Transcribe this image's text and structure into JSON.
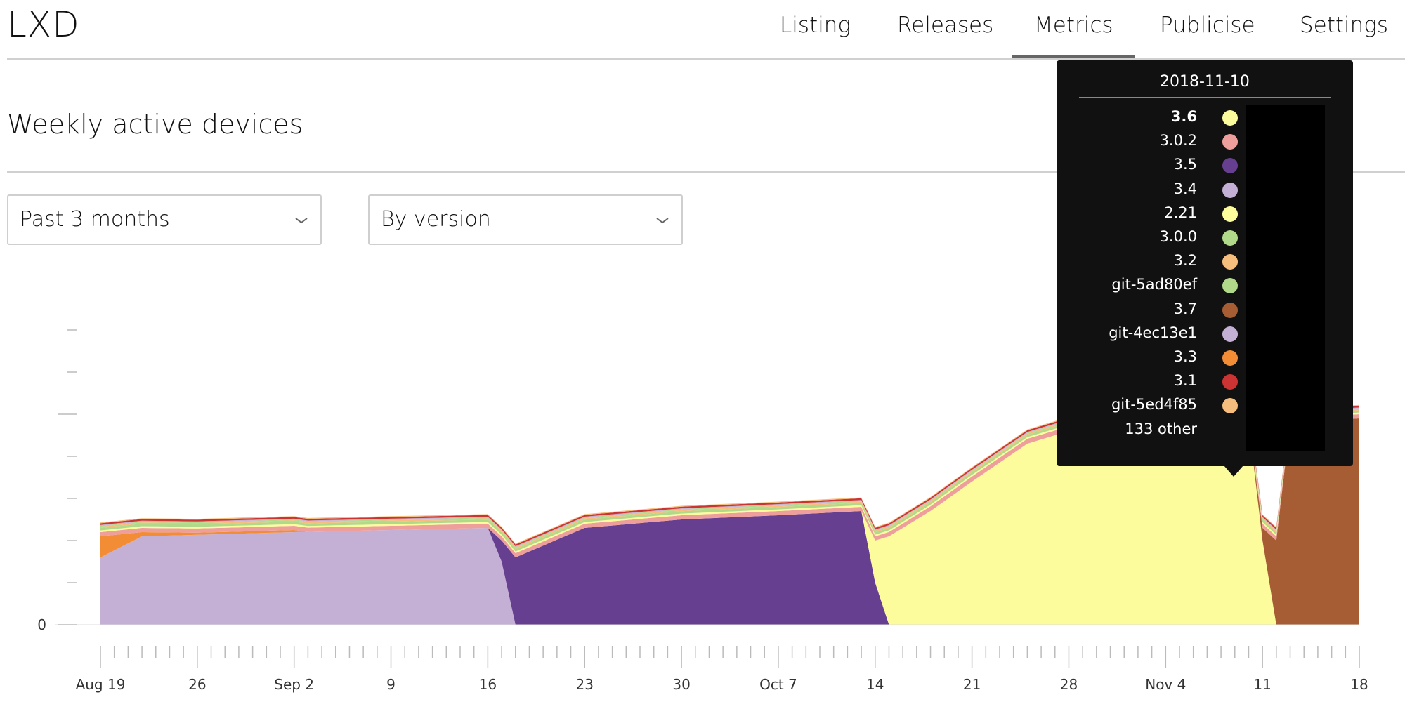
{
  "app": {
    "title": "LXD"
  },
  "nav": {
    "items": [
      {
        "label": "Listing"
      },
      {
        "label": "Releases"
      },
      {
        "label": "Metrics",
        "active": true
      },
      {
        "label": "Publicise"
      },
      {
        "label": "Settings"
      }
    ]
  },
  "section": {
    "title": "Weekly active devices"
  },
  "filters": {
    "period": {
      "selected": "Past 3 months"
    },
    "grouping": {
      "selected": "By version"
    }
  },
  "icons": {
    "select_chevron": "chevron-down-icon"
  },
  "chart_data": {
    "type": "area",
    "stacked": true,
    "y_tick_labels": [
      "0"
    ],
    "x_tick_labels": [
      "Aug 19",
      "26",
      "Sep 2",
      "9",
      "16",
      "23",
      "30",
      "Oct 7",
      "14",
      "21",
      "28",
      "Nov 4",
      "11",
      "18"
    ],
    "x_range": [
      "2018-08-19",
      "2018-11-18"
    ],
    "y_range": [
      0,
      7
    ],
    "grid": false,
    "legend": "tooltip",
    "series": [
      {
        "name": "3.4",
        "color": "#c5b0d5",
        "x": [
          "2018-08-19",
          "2018-08-22",
          "2018-09-02",
          "2018-09-16",
          "2018-09-17",
          "2018-09-18"
        ],
        "y": [
          1.6,
          2.1,
          2.2,
          2.3,
          1.5,
          0
        ]
      },
      {
        "name": "3.5",
        "color": "#663f91",
        "x": [
          "2018-09-16",
          "2018-09-17",
          "2018-09-18",
          "2018-09-23",
          "2018-09-30",
          "2018-10-07",
          "2018-10-13",
          "2018-10-14",
          "2018-10-15"
        ],
        "y": [
          0,
          0.5,
          1.6,
          2.3,
          2.5,
          2.6,
          2.7,
          1.0,
          0
        ]
      },
      {
        "name": "3.6",
        "color": "#fdfc9c",
        "x": [
          "2018-10-13",
          "2018-10-14",
          "2018-10-15",
          "2018-10-18",
          "2018-10-21",
          "2018-10-25",
          "2018-10-28",
          "2018-11-04",
          "2018-11-10",
          "2018-11-11",
          "2018-11-12"
        ],
        "y": [
          0,
          1.0,
          2.1,
          2.7,
          3.4,
          4.3,
          4.6,
          4.7,
          4.8,
          2.0,
          0
        ]
      },
      {
        "name": "3.7",
        "color": "#a65d33",
        "x": [
          "2018-11-10",
          "2018-11-11",
          "2018-11-12",
          "2018-11-13",
          "2018-11-18"
        ],
        "y": [
          0,
          0.3,
          2.0,
          4.8,
          4.9
        ]
      },
      {
        "name": "3.3",
        "color": "#f28d36",
        "x": [
          "2018-08-19",
          "2018-08-22",
          "2018-08-26",
          "2018-09-02"
        ],
        "y": [
          0.5,
          0.1,
          0.05,
          0.05
        ]
      },
      {
        "name": "3.0.2",
        "color": "#ef9f9b",
        "x": [
          "2018-08-19",
          "2018-09-16",
          "2018-10-14",
          "2018-10-21",
          "2018-11-10",
          "2018-11-18"
        ],
        "y": [
          0.1,
          0.1,
          0.1,
          0.12,
          0.1,
          0.1
        ]
      },
      {
        "name": "2.21",
        "color": "#fdfc9c",
        "x": [
          "2018-08-19",
          "2018-11-18"
        ],
        "y": [
          0.04,
          0.04
        ]
      },
      {
        "name": "3.0.0",
        "color": "#b1d98a",
        "x": [
          "2018-08-19",
          "2018-11-18"
        ],
        "y": [
          0.06,
          0.05
        ]
      },
      {
        "name": "3.2",
        "color": "#f5be7d",
        "x": [
          "2018-08-19",
          "2018-11-18"
        ],
        "y": [
          0.03,
          0.03
        ]
      },
      {
        "name": "git-5ad80ef",
        "color": "#b1d98a",
        "x": [
          "2018-08-19",
          "2018-11-18"
        ],
        "y": [
          0.02,
          0.02
        ]
      },
      {
        "name": "git-4ec13e1",
        "color": "#c5b0d5",
        "x": [
          "2018-08-19",
          "2018-11-18"
        ],
        "y": [
          0.02,
          0.02
        ]
      },
      {
        "name": "3.1",
        "color": "#cc3333",
        "x": [
          "2018-08-19",
          "2018-11-18"
        ],
        "y": [
          0.04,
          0.04
        ]
      },
      {
        "name": "git-5ed4f85",
        "color": "#f5be7d",
        "x": [
          "2018-08-19",
          "2018-11-18"
        ],
        "y": [
          0.02,
          0.02
        ]
      }
    ]
  },
  "tooltip": {
    "date": "2018-11-10",
    "rows": [
      {
        "label": "3.6",
        "color": "#fdfc9c",
        "bold": true
      },
      {
        "label": "3.0.2",
        "color": "#ef9f9b"
      },
      {
        "label": "3.5",
        "color": "#663f91"
      },
      {
        "label": "3.4",
        "color": "#c5b0d5"
      },
      {
        "label": "2.21",
        "color": "#fdfc9c"
      },
      {
        "label": "3.0.0",
        "color": "#b1d98a"
      },
      {
        "label": "3.2",
        "color": "#f5be7d"
      },
      {
        "label": "git-5ad80ef",
        "color": "#b1d98a"
      },
      {
        "label": "3.7",
        "color": "#a65d33"
      },
      {
        "label": "git-4ec13e1",
        "color": "#c5b0d5"
      },
      {
        "label": "3.3",
        "color": "#f28d36"
      },
      {
        "label": "3.1",
        "color": "#cc3333"
      },
      {
        "label": "git-5ed4f85",
        "color": "#f5be7d"
      },
      {
        "label": "133 other",
        "color": null
      }
    ]
  }
}
